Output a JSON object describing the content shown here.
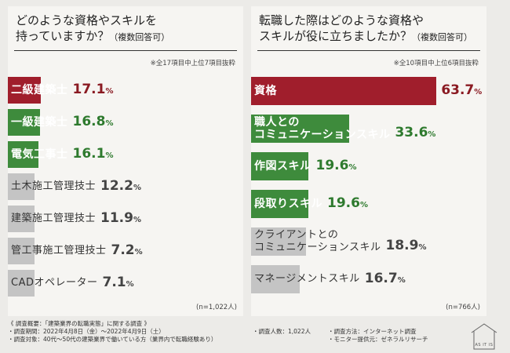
{
  "colors": {
    "red": "#a01e2c",
    "green": "#3e8b3c",
    "gray": "#c4c4c4",
    "value_red": "#8a1a22",
    "value_green": "#2e7a2e",
    "value_gray": "#444444"
  },
  "chart_data": [
    {
      "type": "bar",
      "title": "どのような資格やスキルを\n持っていますか？",
      "title_note": "（複数回答可）",
      "note": "※全17項目中上位7項目抜粋",
      "n_label": "(n=1,022人)",
      "xlim": [
        0,
        100
      ],
      "categories": [
        "二級建築士",
        "一級建築士",
        "電気工事士",
        "土木施工管理技士",
        "建築施工管理技士",
        "管工事施工管理技士",
        "CADオペレーター"
      ],
      "values": [
        17.1,
        16.8,
        16.1,
        12.2,
        11.9,
        7.2,
        7.1
      ],
      "colors": [
        "red",
        "green",
        "green",
        "gray",
        "gray",
        "gray",
        "gray"
      ]
    },
    {
      "type": "bar",
      "title": "転職した際はどのような資格や\nスキルが役に立ちましたか？",
      "title_note": "（複数回答可）",
      "note": "※全10項目中上位6項目抜粋",
      "n_label": "(n=766人)",
      "xlim": [
        0,
        100
      ],
      "categories": [
        "資格",
        "職人との\nコミュニケーションスキル",
        "作図スキル",
        "段取りスキル",
        "クライアントとの\nコミュニケーションスキル",
        "マネージメントスキル"
      ],
      "values": [
        63.7,
        33.6,
        19.6,
        19.6,
        18.9,
        16.7
      ],
      "colors": [
        "red",
        "green",
        "green",
        "green",
        "gray",
        "gray"
      ]
    }
  ],
  "footer": {
    "line1": "《 調査概要：「建築業界の転職実態」に関する調査 》",
    "line2": "・調査期間：2022年4月8日（金）～2022年4月9日（土）",
    "line3": "・調査対象：40代～50代の建築業界で働いている方（業界内で転職経験あり）",
    "count": "・調査人数：1,022人",
    "method": "・調査方法：インターネット調査",
    "provider": "・モニター提供元：ゼネラルリサーチ"
  },
  "logo_text": "AS IT IS"
}
